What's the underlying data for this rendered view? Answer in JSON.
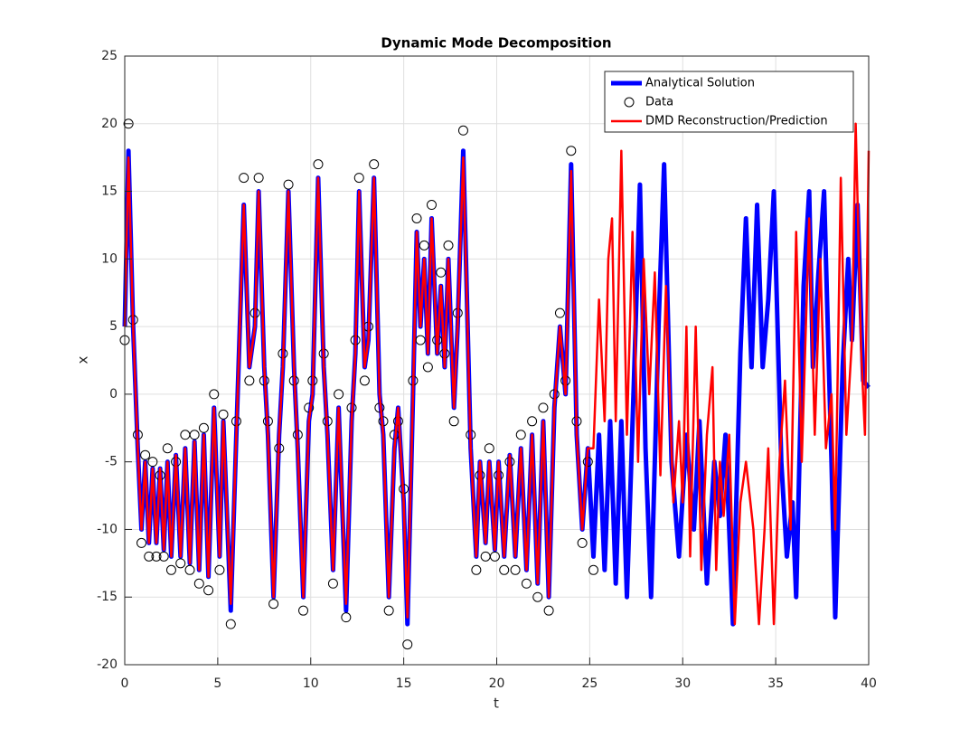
{
  "chart_data": {
    "type": "line",
    "title": "Dynamic Mode Decomposition",
    "x_label": "t",
    "y_label": "x",
    "xlim": [
      0,
      40
    ],
    "xticks": [
      0,
      5,
      10,
      15,
      20,
      25,
      30,
      35,
      40
    ],
    "ylim": [
      -20,
      25
    ],
    "yticks": [
      -20,
      -15,
      -10,
      -5,
      0,
      5,
      10,
      15,
      20,
      25
    ],
    "grid": true,
    "legend": "top-right",
    "series": [
      {
        "name": "Analytical Solution",
        "color": "#0000ff",
        "style": "line",
        "line_width": 5,
        "x": [
          0,
          0.2,
          0.45,
          0.7,
          0.9,
          1.1,
          1.3,
          1.5,
          1.7,
          1.9,
          2.1,
          2.3,
          2.5,
          2.75,
          3.0,
          3.25,
          3.5,
          3.75,
          4.0,
          4.25,
          4.5,
          4.8,
          5.1,
          5.3,
          5.7,
          6.0,
          6.4,
          6.7,
          7.0,
          7.2,
          7.5,
          7.7,
          8.0,
          8.3,
          8.5,
          8.8,
          9.1,
          9.3,
          9.6,
          9.9,
          10.1,
          10.4,
          10.7,
          10.9,
          11.2,
          11.5,
          11.9,
          12.2,
          12.4,
          12.6,
          12.9,
          13.1,
          13.4,
          13.7,
          13.9,
          14.2,
          14.5,
          14.7,
          15.0,
          15.2,
          15.5,
          15.7,
          15.9,
          16.1,
          16.3,
          16.5,
          16.8,
          17.0,
          17.2,
          17.4,
          17.7,
          17.9,
          18.2,
          18.6,
          18.9,
          19.1,
          19.4,
          19.6,
          19.9,
          20.1,
          20.4,
          20.7,
          21.0,
          21.3,
          21.6,
          21.9,
          22.2,
          22.5,
          22.8,
          23.1,
          23.4,
          23.7,
          24.0,
          24.3,
          24.6,
          24.9,
          25.2,
          25.5,
          25.8,
          26.1,
          26.4,
          26.7,
          27.0,
          27.4,
          27.7,
          28.0,
          28.3,
          28.7,
          29.0,
          29.4,
          29.8,
          30.2,
          30.6,
          30.9,
          31.3,
          31.7,
          32.0,
          32.3,
          32.7,
          33.1,
          33.4,
          33.7,
          34.0,
          34.3,
          34.6,
          34.9,
          35.3,
          35.6,
          35.9,
          36.1,
          36.5,
          36.8,
          37.0,
          37.3,
          37.6,
          38.0,
          38.2,
          38.6,
          38.9,
          39.1,
          39.4,
          39.7,
          40
        ],
        "values": [
          5,
          18,
          5,
          -4,
          -10,
          -5,
          -11,
          -5.5,
          -11,
          -5.5,
          -11.5,
          -5,
          -12,
          -4.5,
          -12,
          -4,
          -12.5,
          -3.5,
          -13,
          -3,
          -13.5,
          -1,
          -12,
          -2,
          -16,
          -3,
          14,
          2,
          5,
          15,
          2,
          -3,
          -15,
          -3,
          2,
          15,
          2,
          -4,
          -15,
          -2,
          0,
          16,
          2,
          -3,
          -13,
          -1,
          -16,
          -2,
          3,
          15,
          2,
          4,
          16,
          0,
          -3,
          -15,
          -4,
          -1,
          -8,
          -17,
          0,
          12,
          5,
          10,
          3,
          13,
          3,
          8,
          2,
          10,
          -1,
          5,
          18,
          -4,
          -12,
          -5,
          -11,
          -5,
          -11.5,
          -5,
          -12,
          -4.5,
          -12,
          -4,
          -13,
          -3,
          -14,
          -2,
          -15,
          -1,
          5,
          0,
          17,
          -3,
          -10,
          -4,
          -12,
          -3,
          -13,
          -2,
          -14,
          -2,
          -15,
          2,
          15.5,
          -4,
          -15,
          5,
          17,
          -5,
          -12,
          -3,
          -10,
          -2,
          -14,
          -5,
          -9,
          -3,
          -17,
          3,
          13,
          2,
          14,
          2,
          7,
          15,
          -5,
          -12,
          -8,
          -15,
          8,
          15,
          2,
          9,
          15,
          -5,
          -16.5,
          2,
          10,
          4,
          14,
          1,
          0.5
        ]
      },
      {
        "name": "Data",
        "color": "#000000",
        "style": "marker",
        "x": [
          0,
          0.2,
          0.45,
          0.7,
          0.9,
          1.1,
          1.3,
          1.5,
          1.7,
          1.9,
          2.1,
          2.3,
          2.5,
          2.75,
          3.0,
          3.25,
          3.5,
          3.75,
          4.0,
          4.25,
          4.5,
          4.8,
          5.1,
          5.3,
          5.7,
          6.0,
          6.4,
          6.7,
          7.0,
          7.2,
          7.5,
          7.7,
          8.0,
          8.3,
          8.5,
          8.8,
          9.1,
          9.3,
          9.6,
          9.9,
          10.1,
          10.4,
          10.7,
          10.9,
          11.2,
          11.5,
          11.9,
          12.2,
          12.4,
          12.6,
          12.9,
          13.1,
          13.4,
          13.7,
          13.9,
          14.2,
          14.5,
          14.7,
          15.0,
          15.2,
          15.5,
          15.7,
          15.9,
          16.1,
          16.3,
          16.5,
          16.8,
          17.0,
          17.2,
          17.4,
          17.7,
          17.9,
          18.2,
          18.6,
          18.9,
          19.1,
          19.4,
          19.6,
          19.9,
          20.1,
          20.4,
          20.7,
          21.0,
          21.3,
          21.6,
          21.9,
          22.2,
          22.5,
          22.8,
          23.1,
          23.4,
          23.7,
          24.0,
          24.3,
          24.6,
          24.9,
          25.2
        ],
        "values": [
          4,
          20,
          5.5,
          -3,
          -11,
          -4.5,
          -12,
          -5,
          -12,
          -6,
          -12,
          -4,
          -13,
          -5,
          -12.5,
          -3,
          -13,
          -3,
          -14,
          -2.5,
          -14.5,
          0,
          -13,
          -1.5,
          -17,
          -2,
          16,
          1,
          6,
          16,
          1,
          -2,
          -15.5,
          -4,
          3,
          15.5,
          1,
          -3,
          -16,
          -1,
          1,
          17,
          3,
          -2,
          -14,
          0,
          -16.5,
          -1,
          4,
          16,
          1,
          5,
          17,
          -1,
          -2,
          -16,
          -3,
          -2,
          -7,
          -18.5,
          1,
          13,
          4,
          11,
          2,
          14,
          4,
          9,
          3,
          11,
          -2,
          6,
          19.5,
          -3,
          -13,
          -6,
          -12,
          -4,
          -12,
          -6,
          -13,
          -5,
          -13,
          -3,
          -14,
          -2,
          -15,
          -1,
          -16,
          0,
          6,
          1,
          18,
          -2,
          -11,
          -5,
          -13
        ]
      },
      {
        "name": "DMD Reconstruction/Prediction",
        "color": "#ff0000",
        "style": "line",
        "line_width": 2.5,
        "x": [
          0,
          0.2,
          0.45,
          0.7,
          0.9,
          1.1,
          1.3,
          1.5,
          1.7,
          1.9,
          2.1,
          2.3,
          2.5,
          2.75,
          3.0,
          3.25,
          3.5,
          3.75,
          4.0,
          4.25,
          4.5,
          4.8,
          5.1,
          5.3,
          5.7,
          6.0,
          6.4,
          6.7,
          7.0,
          7.2,
          7.5,
          7.7,
          8.0,
          8.3,
          8.5,
          8.8,
          9.1,
          9.3,
          9.6,
          9.9,
          10.1,
          10.4,
          10.7,
          10.9,
          11.2,
          11.5,
          11.9,
          12.2,
          12.4,
          12.6,
          12.9,
          13.1,
          13.4,
          13.7,
          13.9,
          14.2,
          14.5,
          14.7,
          15.0,
          15.2,
          15.5,
          15.7,
          15.9,
          16.1,
          16.3,
          16.5,
          16.8,
          17.0,
          17.2,
          17.4,
          17.7,
          17.9,
          18.2,
          18.6,
          18.9,
          19.1,
          19.4,
          19.6,
          19.9,
          20.1,
          20.4,
          20.7,
          21.0,
          21.3,
          21.6,
          21.9,
          22.2,
          22.5,
          22.8,
          23.1,
          23.4,
          23.7,
          24.0,
          24.3,
          24.6,
          24.9,
          25.2,
          25.5,
          25.8,
          26.0,
          26.2,
          26.4,
          26.7,
          27.0,
          27.3,
          27.6,
          27.9,
          28.2,
          28.5,
          28.8,
          29.1,
          29.5,
          29.8,
          30.0,
          30.2,
          30.4,
          30.7,
          31.0,
          31.3,
          31.6,
          31.8,
          32.0,
          32.2,
          32.5,
          32.8,
          33.1,
          33.4,
          33.8,
          34.1,
          34.4,
          34.6,
          34.9,
          35.2,
          35.5,
          35.8,
          36.1,
          36.4,
          36.8,
          37.1,
          37.4,
          37.7,
          38.0,
          38.2,
          38.5,
          38.8,
          39.1,
          39.3,
          39.6,
          39.8,
          40
        ],
        "values": [
          5,
          17.5,
          5,
          -4,
          -10,
          -5,
          -11,
          -5.5,
          -11,
          -5.5,
          -11.5,
          -5,
          -12,
          -4.5,
          -12,
          -4,
          -12.5,
          -3.5,
          -13,
          -3,
          -13.5,
          -1,
          -12,
          -2,
          -15.5,
          -3,
          14,
          2,
          5,
          15,
          2,
          -3,
          -15,
          -3,
          2,
          15,
          2,
          -4,
          -15,
          -2,
          0,
          16,
          2,
          -3,
          -13,
          -1,
          -15.5,
          -2,
          3,
          15,
          2,
          4,
          16,
          0,
          -3,
          -15,
          -4,
          -1,
          -8,
          -16.5,
          0,
          12,
          5,
          10,
          3,
          13,
          3,
          8,
          2,
          10,
          -1,
          5,
          17.5,
          -4,
          -12,
          -5,
          -11,
          -5,
          -11.5,
          -5,
          -12,
          -4.5,
          -12,
          -4,
          -13,
          -3,
          -14,
          -2,
          -15,
          -1,
          5,
          0,
          16.5,
          -3,
          -10,
          -4,
          -4,
          7,
          -2,
          10,
          13,
          -2,
          18,
          -3,
          12,
          -5,
          10,
          0,
          9,
          -6,
          8,
          -8,
          -2,
          -8,
          5,
          -12,
          5,
          -13,
          -3,
          2,
          -13,
          -5,
          -9,
          -3,
          -17,
          -8,
          -5,
          -10,
          -17,
          -10,
          -4,
          -17,
          -5,
          1,
          -10,
          12,
          -5,
          13,
          -3,
          10,
          -4,
          0,
          -10,
          16,
          -3,
          4,
          20,
          3,
          -3,
          18
        ]
      }
    ]
  }
}
